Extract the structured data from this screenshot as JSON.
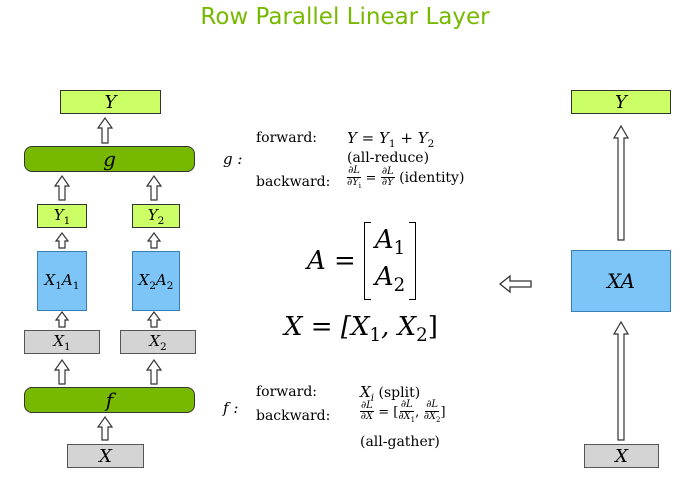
{
  "title": "Row Parallel Linear Layer",
  "left": {
    "y_top": "Y",
    "g": "g",
    "y1": "Y",
    "y1_sub": "1",
    "y2": "Y",
    "y2_sub": "2",
    "xa1_x": "X",
    "xa1_xs": "1",
    "xa1_a": "A",
    "xa1_as": "1",
    "xa2_x": "X",
    "xa2_xs": "2",
    "xa2_a": "A",
    "xa2_as": "2",
    "x1": "X",
    "x1_sub": "1",
    "x2": "X",
    "x2_sub": "2",
    "f": "f",
    "x_bottom": "X"
  },
  "right": {
    "y_top": "Y",
    "xa": "XA",
    "x_bottom": "X"
  },
  "g_block": {
    "label": "g :",
    "forward_label": "forward:",
    "forward_eq": "Y = Y",
    "forward_s1": "1",
    "forward_plus": " + Y",
    "forward_s2": "2",
    "forward_note": "(all-reduce)",
    "backward_label": "backward:",
    "dL": "∂L",
    "dYi": "∂Y",
    "dYi_sub": "i",
    "eq": "=",
    "dL2": "∂L",
    "dY": "∂Y",
    "backward_note": "(identity)"
  },
  "f_block": {
    "label": "f :",
    "forward_label": "forward:",
    "forward_x": "X",
    "forward_sub": "i",
    "forward_note": "(split)",
    "backward_label": "backward:",
    "dL": "∂L",
    "dX": "∂X",
    "eq_open": "= [",
    "dL1": "∂L",
    "dX1": "∂X",
    "dX1_sub": "1",
    "comma": ",",
    "dL2": "∂L",
    "dX2": "∂X",
    "dX2_sub": "2",
    "close": "]",
    "backward_note": "(all-gather)"
  },
  "center": {
    "a_lhs": "A =",
    "a1": "A",
    "a1_sub": "1",
    "a2": "A",
    "a2_sub": "2",
    "x_lhs": "X = [X",
    "x1_sub": "1",
    "x_mid": ", X",
    "x2_sub": "2",
    "x_close": "]"
  },
  "colors": {
    "nvidia_green": "#76b900",
    "lime": "#ccff66",
    "blue": "#7ec5f7",
    "gray": "#d4d4d4"
  }
}
